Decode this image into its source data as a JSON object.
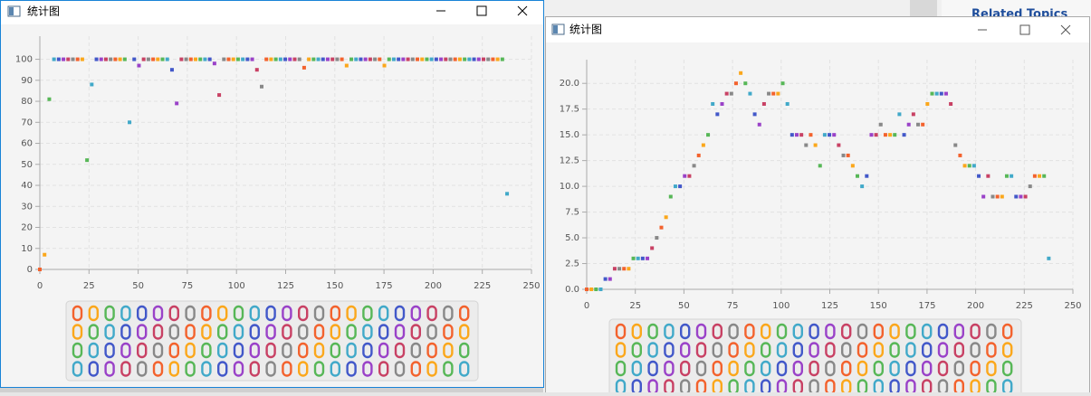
{
  "windows": [
    {
      "title": "统计图"
    },
    {
      "title": "统计图"
    }
  ],
  "background": {
    "heading": "Related Topics"
  },
  "chart_data": [
    {
      "type": "scatter",
      "x": [
        0,
        2.4,
        4.8,
        7.2,
        9.6,
        12,
        14.4,
        16.8,
        19.2,
        21.6,
        24,
        26.4,
        28.8,
        31.2,
        33.6,
        36,
        38.4,
        40.8,
        43.2,
        45.6,
        48,
        50.4,
        52.8,
        55.2,
        57.6,
        60,
        62.4,
        64.8,
        67.2,
        69.6,
        72,
        74.4,
        76.8,
        79.2,
        81.6,
        84,
        86.4,
        88.8,
        91.2,
        93.6,
        96,
        98.4,
        100.8,
        103.2,
        105.6,
        108,
        110.4,
        112.8,
        115.2,
        117.6,
        120,
        122.4,
        124.8,
        127.2,
        129.6,
        132,
        134.4,
        136.8,
        139.2,
        141.6,
        144,
        146.4,
        148.8,
        151.2,
        153.6,
        156,
        158.4,
        160.8,
        163.2,
        165.6,
        168,
        170.4,
        172.8,
        175.2,
        177.6,
        180,
        182.4,
        184.8,
        187.2,
        189.6,
        192,
        194.4,
        196.8,
        199.2,
        201.6,
        204,
        206.4,
        208.8,
        211.2,
        213.6,
        216,
        218.4,
        220.8,
        223.2,
        225.6,
        228,
        230.4,
        232.8,
        235.2,
        237.6
      ],
      "values": [
        0,
        7,
        81,
        100,
        100,
        100,
        100,
        100,
        100,
        100,
        52,
        88,
        100,
        100,
        100,
        100,
        100,
        100,
        100,
        70,
        100,
        97,
        100,
        100,
        100,
        100,
        100,
        100,
        95,
        79,
        100,
        100,
        100,
        100,
        100,
        100,
        100,
        98,
        83,
        100,
        100,
        100,
        100,
        100,
        100,
        100,
        95,
        87,
        100,
        100,
        100,
        100,
        100,
        100,
        100,
        100,
        96,
        100,
        100,
        100,
        100,
        100,
        100,
        100,
        100,
        97,
        100,
        100,
        100,
        100,
        100,
        100,
        100,
        97,
        100,
        100,
        100,
        100,
        100,
        100,
        100,
        100,
        100,
        100,
        100,
        100,
        100,
        100,
        100,
        100,
        100,
        100,
        100,
        100,
        100,
        100,
        100,
        100,
        100,
        36
      ],
      "colors": [
        "#f3622d",
        "#fba71b",
        "#57b757",
        "#41a9c9",
        "#4258c9",
        "#9a42c8",
        "#c84164",
        "#888888"
      ],
      "xlim": [
        0,
        250
      ],
      "xticks": [
        0,
        25,
        50,
        75,
        100,
        125,
        150,
        175,
        200,
        225,
        250
      ],
      "ylim": [
        0,
        111
      ],
      "yticks": [
        0,
        10,
        20,
        30,
        40,
        50,
        60,
        70,
        80,
        90,
        100
      ],
      "grid": true
    },
    {
      "type": "scatter",
      "x": [
        0,
        2.4,
        4.8,
        7.2,
        9.6,
        12,
        14.4,
        16.8,
        19.2,
        21.6,
        24,
        26.4,
        28.8,
        31.2,
        33.6,
        36,
        38.4,
        40.8,
        43.2,
        45.6,
        48,
        50.4,
        52.8,
        55.2,
        57.6,
        60,
        62.4,
        64.8,
        67.2,
        69.6,
        72,
        74.4,
        76.8,
        79.2,
        81.6,
        84,
        86.4,
        88.8,
        91.2,
        93.6,
        96,
        98.4,
        100.8,
        103.2,
        105.6,
        108,
        110.4,
        112.8,
        115.2,
        117.6,
        120,
        122.4,
        124.8,
        127.2,
        129.6,
        132,
        134.4,
        136.8,
        139.2,
        141.6,
        144,
        146.4,
        148.8,
        151.2,
        153.6,
        156,
        158.4,
        160.8,
        163.2,
        165.6,
        168,
        170.4,
        172.8,
        175.2,
        177.6,
        180,
        182.4,
        184.8,
        187.2,
        189.6,
        192,
        194.4,
        196.8,
        199.2,
        201.6,
        204,
        206.4,
        208.8,
        211.2,
        213.6,
        216,
        218.4,
        220.8,
        223.2,
        225.6,
        228,
        230.4,
        232.8,
        235.2,
        237.6
      ],
      "values": [
        0,
        0,
        0,
        0,
        1,
        1,
        2,
        2,
        2,
        2,
        3,
        3,
        3,
        3,
        4,
        5,
        6,
        7,
        9,
        10,
        10,
        11,
        11,
        12,
        13,
        14,
        15,
        18,
        17,
        18,
        19,
        19,
        20,
        21,
        20,
        19,
        17,
        16,
        18,
        19,
        19,
        19,
        20,
        18,
        15,
        15,
        15,
        14,
        15,
        14,
        12,
        15,
        15,
        15,
        14,
        13,
        13,
        12,
        11,
        10,
        11,
        15,
        15,
        16,
        15,
        15,
        15,
        17,
        15,
        16,
        17,
        16,
        16,
        18,
        19,
        19,
        19,
        19,
        18,
        14,
        13,
        12,
        12,
        12,
        11,
        9,
        11,
        9,
        9,
        9,
        11,
        11,
        9,
        9,
        9,
        10,
        11,
        11,
        11,
        3
      ],
      "colors": [
        "#f3622d",
        "#fba71b",
        "#57b757",
        "#41a9c9",
        "#4258c9",
        "#9a42c8",
        "#c84164",
        "#888888"
      ],
      "xlim": [
        0,
        250
      ],
      "xticks": [
        0,
        25,
        50,
        75,
        100,
        125,
        150,
        175,
        200,
        225,
        250
      ],
      "ylim": [
        0,
        22.3
      ],
      "yticks": [
        {
          "value": 0,
          "label": "0.0"
        },
        2.5,
        {
          "value": 5,
          "label": "5.0"
        },
        7.5,
        {
          "value": 10,
          "label": "10.0"
        },
        12.5,
        {
          "value": 15,
          "label": "15.0"
        },
        17.5,
        {
          "value": 20,
          "label": "20.0"
        }
      ],
      "grid": true
    }
  ]
}
